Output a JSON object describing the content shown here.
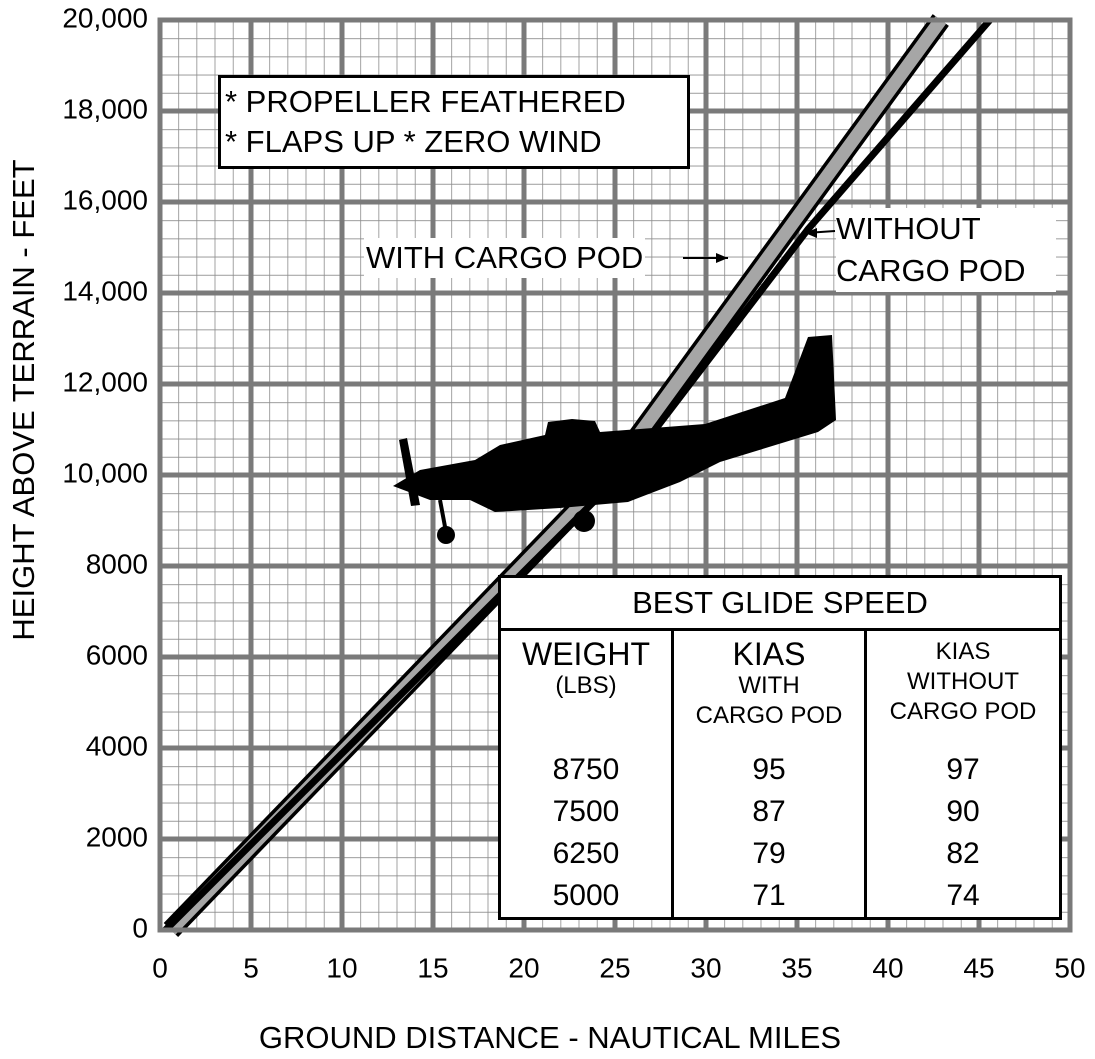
{
  "chart_data": {
    "type": "line",
    "xlabel": "GROUND DISTANCE - NAUTICAL MILES",
    "ylabel": "HEIGHT ABOVE TERRAIN - FEET",
    "xlim": [
      0,
      50
    ],
    "xticks": [
      0,
      5,
      10,
      15,
      20,
      25,
      30,
      35,
      40,
      45,
      50
    ],
    "ylim": [
      0,
      20000
    ],
    "yticks": [
      0,
      2000,
      4000,
      6000,
      8000,
      {
        "value": 10000,
        "label": "10,000"
      },
      {
        "value": 12000,
        "label": "12,000"
      },
      {
        "value": 14000,
        "label": "14,000"
      },
      {
        "value": 16000,
        "label": "16,000"
      },
      {
        "value": 18000,
        "label": "18,000"
      },
      {
        "value": 20000,
        "label": "20,000"
      }
    ],
    "grid": true,
    "series": [
      {
        "name": "WITH CARGO POD",
        "color": "#a6a6a6",
        "x": [
          0.6,
          24.7,
          42.9
        ],
        "values": [
          0,
          10000,
          20000
        ]
      },
      {
        "name": "WITHOUT CARGO POD",
        "color": "#000000",
        "x": [
          0.3,
          25.3,
          35.6,
          45.6
        ],
        "values": [
          0,
          10000,
          15400,
          20000
        ]
      }
    ],
    "annotations": [
      "* PROPELLER FEATHERED",
      "* FLAPS UP  * ZERO WIND"
    ],
    "table": {
      "title": "BEST GLIDE SPEED",
      "headers": [
        [
          "WEIGHT",
          "(LBS)"
        ],
        [
          "KIAS",
          "WITH",
          "CARGO POD"
        ],
        [
          "KIAS",
          "WITHOUT",
          "CARGO POD"
        ]
      ],
      "rows": [
        [
          "8750",
          "95",
          "97"
        ],
        [
          "7500",
          "87",
          "90"
        ],
        [
          "6250",
          "79",
          "82"
        ],
        [
          "5000",
          "71",
          "74"
        ]
      ]
    }
  }
}
